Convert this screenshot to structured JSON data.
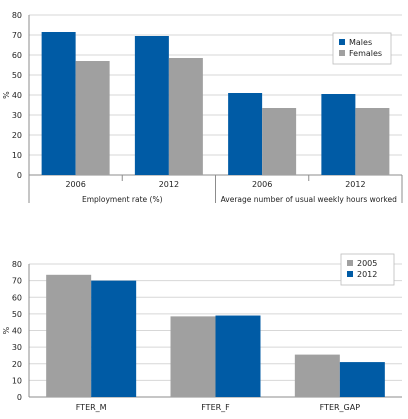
{
  "colors": {
    "blue": "#005ba5",
    "grey": "#a0a0a0",
    "grid": "#d7d7d7",
    "axis": "#8c8c8c"
  },
  "chart_data": [
    {
      "type": "bar",
      "ylabel": "%",
      "ylim": [
        0,
        80
      ],
      "yticks": [
        0,
        10,
        20,
        30,
        40,
        50,
        60,
        70,
        80
      ],
      "grid": true,
      "legend_position": "top-right",
      "groups": [
        "Employment rate (%)",
        "Average number of usual weekly hours worked"
      ],
      "categories": [
        "2006",
        "2012",
        "2006",
        "2012"
      ],
      "series": [
        {
          "name": "Males",
          "color": "#005ba5",
          "values": [
            71.5,
            69.5,
            41,
            40.5
          ]
        },
        {
          "name": "Females",
          "color": "#a0a0a0",
          "values": [
            57,
            58.5,
            33.5,
            33.5
          ]
        }
      ]
    },
    {
      "type": "bar",
      "ylabel": "%",
      "ylim": [
        0,
        80
      ],
      "yticks": [
        0,
        10,
        20,
        30,
        40,
        50,
        60,
        70,
        80
      ],
      "grid": true,
      "legend_position": "top-right",
      "categories": [
        "FTER_M",
        "FTER_F",
        "FTER_GAP"
      ],
      "series": [
        {
          "name": "2005",
          "color": "#a0a0a0",
          "values": [
            73.5,
            48.5,
            25.5
          ]
        },
        {
          "name": "2012",
          "color": "#005ba5",
          "values": [
            70,
            49,
            21
          ]
        }
      ]
    }
  ]
}
